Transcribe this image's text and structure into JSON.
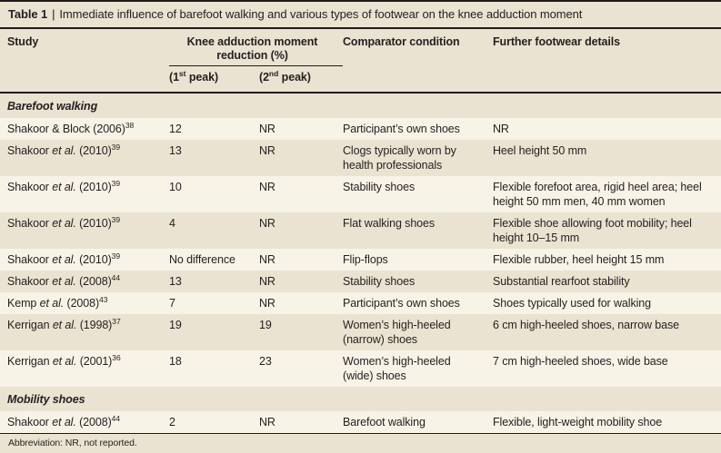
{
  "colors": {
    "background_base": "#eae3d1",
    "row_light": "#f7f3e7",
    "rule_dark": "#1f1b16",
    "text": "#231f20"
  },
  "table": {
    "title": {
      "label": "Table 1",
      "separator": "|",
      "text": "Immediate influence of barefoot walking and various types of footwear on the knee adduction moment"
    },
    "header": {
      "study": "Study",
      "group": "Knee adduction moment reduction (%)",
      "peak1": {
        "pre": "(1",
        "sup": "st",
        "post": " peak)"
      },
      "peak2": {
        "pre": "(2",
        "sup": "nd",
        "post": " peak)"
      },
      "comparator": "Comparator condition",
      "details": "Further footwear details"
    },
    "sections": [
      {
        "label": "Barefoot walking",
        "rows": [
          {
            "study_pre": "Shakoor & Block (2006)",
            "study_italic": "",
            "study_post": "",
            "ref": "38",
            "peak1": "12",
            "peak2": "NR",
            "comparator": "Participant’s own shoes",
            "details": "NR"
          },
          {
            "study_pre": "Shakoor ",
            "study_italic": "et al.",
            "study_post": " (2010)",
            "ref": "39",
            "peak1": "13",
            "peak2": "NR",
            "comparator": "Clogs typically worn by health professionals",
            "details": "Heel height 50 mm"
          },
          {
            "study_pre": "Shakoor ",
            "study_italic": "et al.",
            "study_post": " (2010)",
            "ref": "39",
            "peak1": "10",
            "peak2": "NR",
            "comparator": "Stability shoes",
            "details": "Flexible forefoot area, rigid heel area; heel height 50 mm men, 40 mm women"
          },
          {
            "study_pre": "Shakoor ",
            "study_italic": "et al.",
            "study_post": " (2010)",
            "ref": "39",
            "peak1": "4",
            "peak2": "NR",
            "comparator": "Flat walking shoes",
            "details": "Flexible shoe allowing foot mobility; heel height 10–15 mm"
          },
          {
            "study_pre": "Shakoor ",
            "study_italic": "et al.",
            "study_post": " (2010)",
            "ref": "39",
            "peak1": "No difference",
            "peak2": "NR",
            "comparator": "Flip-flops",
            "details": "Flexible rubber, heel height 15 mm"
          },
          {
            "study_pre": "Shakoor ",
            "study_italic": "et al.",
            "study_post": " (2008)",
            "ref": "44",
            "peak1": "13",
            "peak2": "NR",
            "comparator": "Stability shoes",
            "details": "Substantial rearfoot stability"
          },
          {
            "study_pre": "Kemp ",
            "study_italic": "et al.",
            "study_post": " (2008)",
            "ref": "43",
            "peak1": "7",
            "peak2": "NR",
            "comparator": "Participant’s own shoes",
            "details": "Shoes typically used for walking"
          },
          {
            "study_pre": "Kerrigan ",
            "study_italic": "et al.",
            "study_post": " (1998)",
            "ref": "37",
            "peak1": "19",
            "peak2": "19",
            "comparator": "Women’s high-heeled (narrow) shoes",
            "details": "6 cm high-heeled shoes, narrow base"
          },
          {
            "study_pre": "Kerrigan ",
            "study_italic": "et al.",
            "study_post": " (2001)",
            "ref": "36",
            "peak1": "18",
            "peak2": "23",
            "comparator": "Women’s high-heeled (wide) shoes",
            "details": "7 cm high-heeled shoes, wide base"
          }
        ]
      },
      {
        "label": "Mobility shoes",
        "rows": [
          {
            "study_pre": "Shakoor ",
            "study_italic": "et al.",
            "study_post": " (2008)",
            "ref": "44",
            "peak1": "2",
            "peak2": "NR",
            "comparator": "Barefoot walking",
            "details": "Flexible, light-weight mobility shoe"
          }
        ]
      }
    ],
    "footnote": "Abbreviation: NR, not reported."
  }
}
